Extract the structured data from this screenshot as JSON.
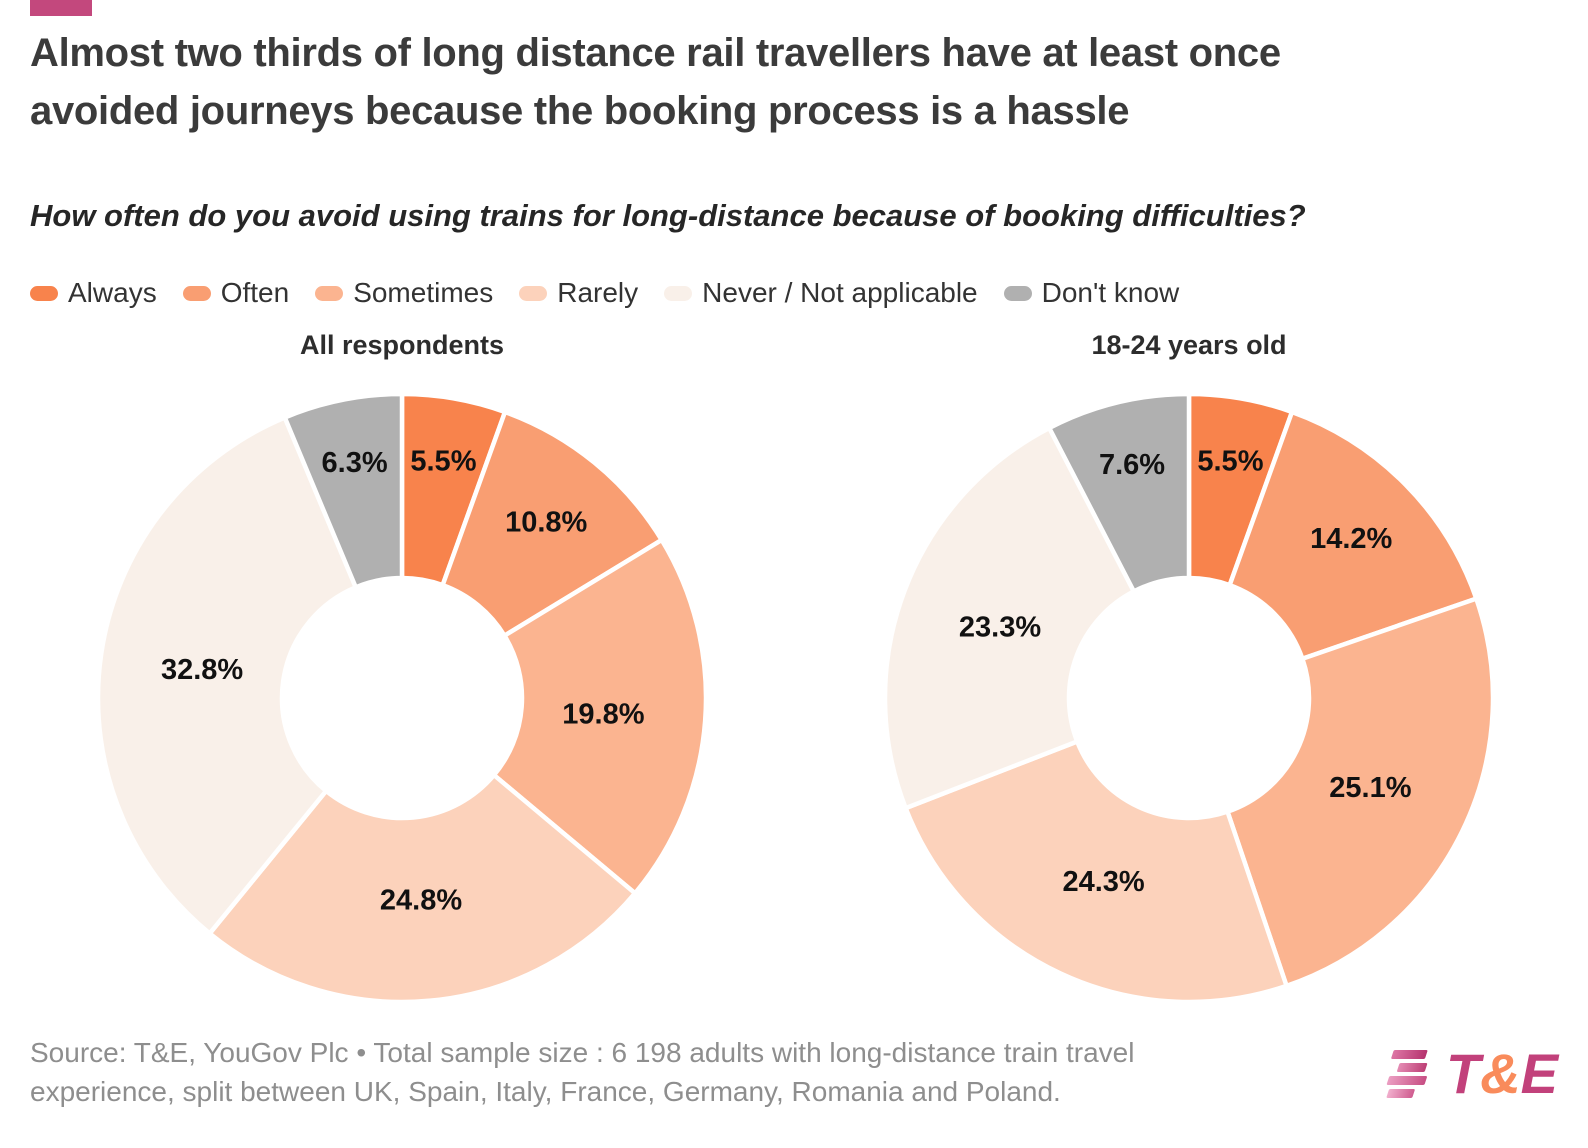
{
  "accent_bar_color": "#c3487d",
  "header": {
    "title": "Almost two thirds of long distance rail travellers have at least once\navoided journeys because the booking process is a hassle",
    "subtitle": "How often do you avoid using trains for long-distance because of booking difficulties?"
  },
  "legend": {
    "items": [
      {
        "label": "Always",
        "color": "#f8834c"
      },
      {
        "label": "Often",
        "color": "#f99e72"
      },
      {
        "label": "Sometimes",
        "color": "#fbb490"
      },
      {
        "label": "Rarely",
        "color": "#fcd2bb"
      },
      {
        "label": "Never / Not applicable",
        "color": "#f9f0e9"
      },
      {
        "label": "Don't know",
        "color": "#b0b0b0"
      }
    ]
  },
  "chart_data": {
    "type": "pie",
    "subtype": "donut",
    "legend_position": "top",
    "categories": [
      "Always",
      "Often",
      "Sometimes",
      "Rarely",
      "Never / Not applicable",
      "Don't know"
    ],
    "colors": [
      "#f8834c",
      "#f99e72",
      "#fbb490",
      "#fcd2bb",
      "#f9f0e9",
      "#b0b0b0"
    ],
    "charts": [
      {
        "title": "All respondents",
        "values": [
          5.5,
          10.8,
          19.8,
          24.8,
          32.8,
          6.3
        ],
        "labels": [
          "5.5%",
          "10.8%",
          "19.8%",
          "24.8%",
          "32.8%",
          "6.3%"
        ]
      },
      {
        "title": "18-24 years old",
        "values": [
          5.5,
          14.2,
          25.1,
          24.3,
          23.3,
          7.6
        ],
        "labels": [
          "5.5%",
          "14.2%",
          "25.1%",
          "24.3%",
          "23.3%",
          "7.6%"
        ]
      }
    ]
  },
  "footer": {
    "source": "Source: T&E, YouGov Plc • Total sample size : 6 198 adults with long-distance train travel\nexperience, split between UK, Spain, Italy, France, Germany, Romania and Poland.",
    "logo": {
      "t": "T",
      "amp": "&",
      "e": "E"
    },
    "logo_colors": {
      "magenta": "#c2417b",
      "orange": "#f98b5b"
    }
  }
}
